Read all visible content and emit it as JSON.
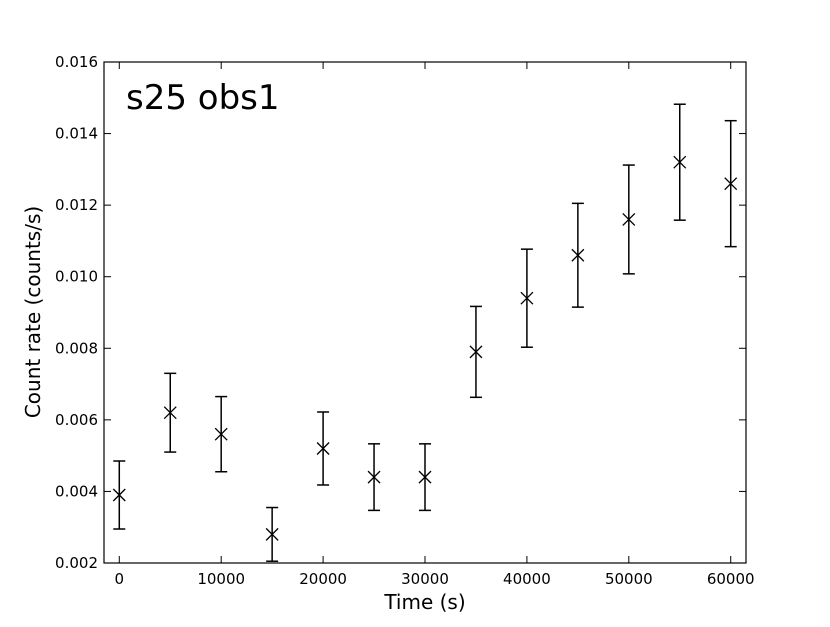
{
  "chart_data": {
    "type": "scatter",
    "title": "s25 obs1",
    "xlabel": "Time (s)",
    "ylabel": "Count rate (counts/s)",
    "xlim": [
      -1500,
      61500
    ],
    "ylim": [
      0.002,
      0.016
    ],
    "x_ticks": [
      0,
      10000,
      20000,
      30000,
      40000,
      50000,
      60000
    ],
    "y_ticks": [
      0.002,
      0.004,
      0.006,
      0.008,
      0.01,
      0.012,
      0.014,
      0.016
    ],
    "x_tick_labels": [
      "0",
      "10000",
      "20000",
      "30000",
      "40000",
      "50000",
      "60000"
    ],
    "y_tick_labels": [
      "0.002",
      "0.004",
      "0.006",
      "0.008",
      "0.010",
      "0.012",
      "0.014",
      "0.016"
    ],
    "grid": false,
    "marker": "x",
    "color": "#000000",
    "points": [
      {
        "x": 0,
        "y": 0.0039,
        "err_low": 0.00095,
        "err_high": 0.00095
      },
      {
        "x": 5000,
        "y": 0.0062,
        "err_low": 0.0011,
        "err_high": 0.0011
      },
      {
        "x": 10000,
        "y": 0.0056,
        "err_low": 0.00105,
        "err_high": 0.00105
      },
      {
        "x": 15000,
        "y": 0.0028,
        "err_low": 0.00075,
        "err_high": 0.00075
      },
      {
        "x": 20000,
        "y": 0.0052,
        "err_low": 0.00102,
        "err_high": 0.00102
      },
      {
        "x": 25000,
        "y": 0.0044,
        "err_low": 0.00093,
        "err_high": 0.00093
      },
      {
        "x": 30000,
        "y": 0.0044,
        "err_low": 0.00093,
        "err_high": 0.00093
      },
      {
        "x": 35000,
        "y": 0.0079,
        "err_low": 0.00127,
        "err_high": 0.00127
      },
      {
        "x": 40000,
        "y": 0.0094,
        "err_low": 0.00137,
        "err_high": 0.00137
      },
      {
        "x": 45000,
        "y": 0.0106,
        "err_low": 0.00145,
        "err_high": 0.00145
      },
      {
        "x": 50000,
        "y": 0.0116,
        "err_low": 0.00152,
        "err_high": 0.00152
      },
      {
        "x": 55000,
        "y": 0.0132,
        "err_low": 0.00162,
        "err_high": 0.00162
      },
      {
        "x": 60000,
        "y": 0.0126,
        "err_low": 0.00176,
        "err_high": 0.00176
      }
    ]
  }
}
